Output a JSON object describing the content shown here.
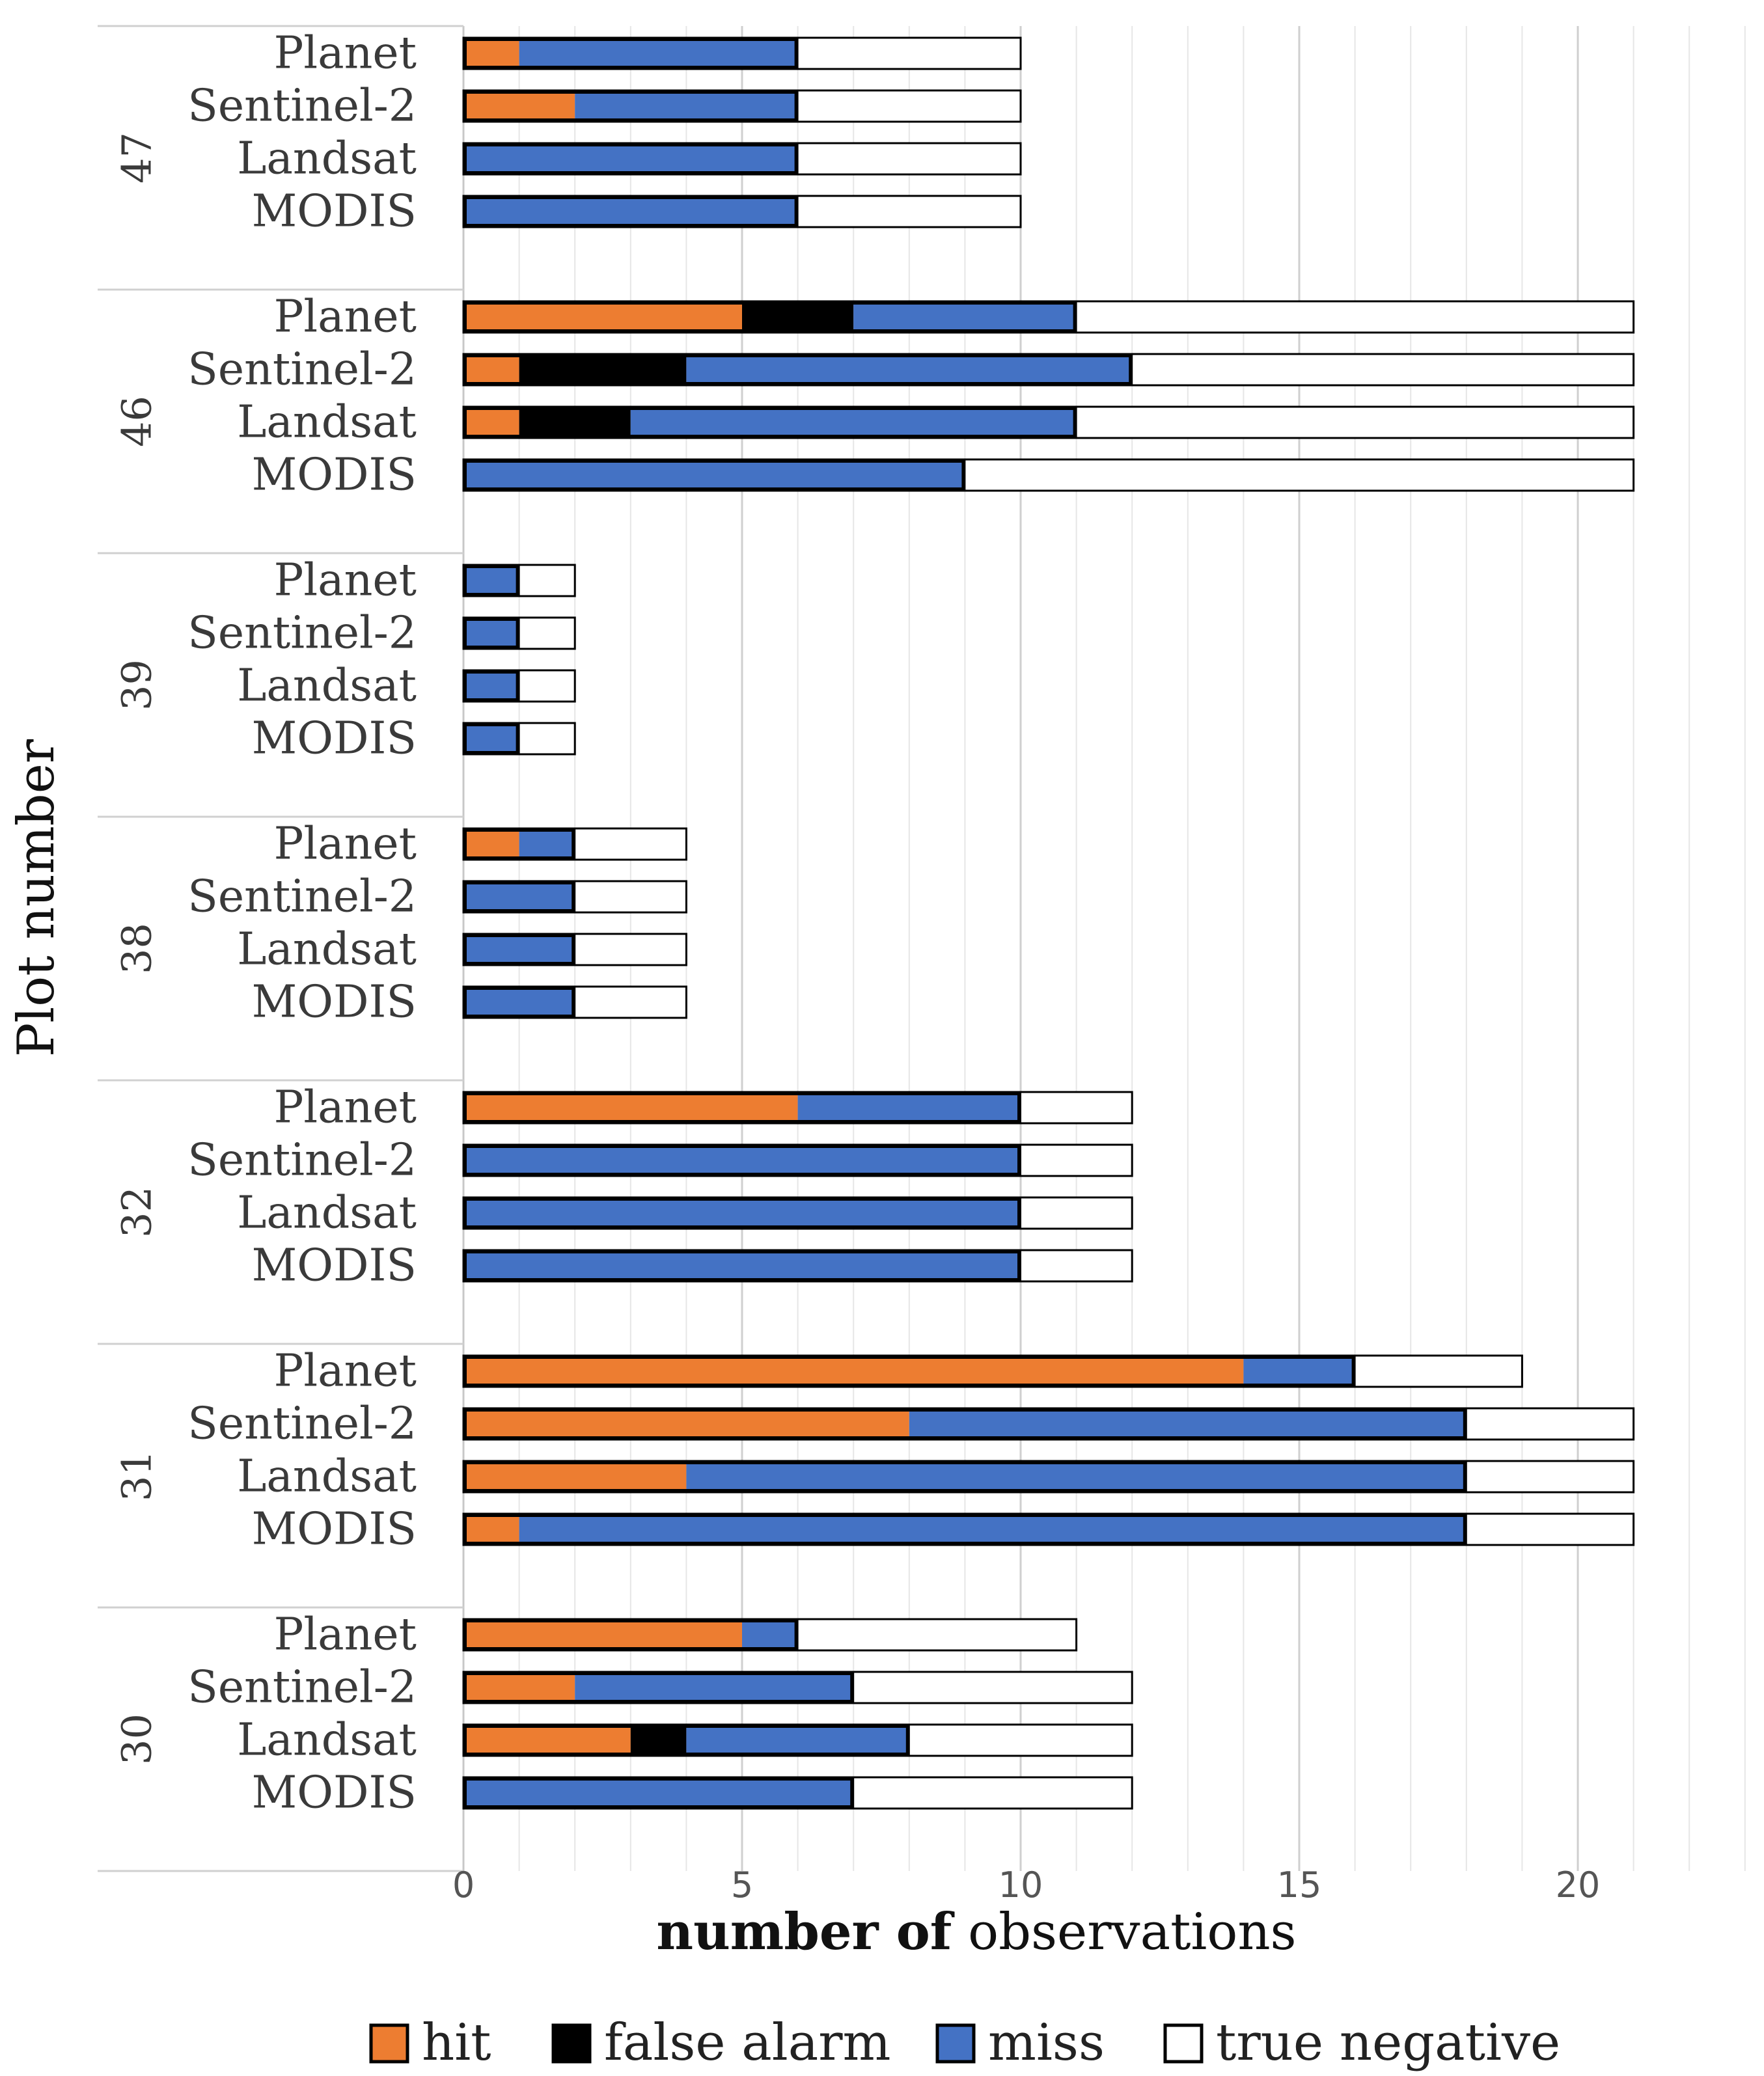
{
  "chart_data": {
    "type": "bar",
    "orientation": "horizontal",
    "stacked": true,
    "ylabel": "Plot number",
    "xlabel_bold": "number of",
    "xlabel_rest": " observations",
    "xlim": [
      0,
      23
    ],
    "xticks": [
      0,
      5,
      10,
      15,
      20
    ],
    "grid": "vertical, every 1 unit",
    "legend_position": "bottom",
    "series": [
      {
        "name": "hit",
        "color": "#ED7D31"
      },
      {
        "name": "false alarm",
        "color": "#000000"
      },
      {
        "name": "miss",
        "color": "#4472C4"
      },
      {
        "name": "true negative",
        "color": "#FFFFFF"
      }
    ],
    "groups": [
      {
        "plot": "47",
        "bars": [
          {
            "sensor": "Planet",
            "values": [
              1,
              0,
              5,
              4
            ]
          },
          {
            "sensor": "Sentinel-2",
            "values": [
              2,
              0,
              4,
              4
            ]
          },
          {
            "sensor": "Landsat",
            "values": [
              0,
              0,
              6,
              4
            ]
          },
          {
            "sensor": "MODIS",
            "values": [
              0,
              0,
              6,
              4
            ]
          }
        ]
      },
      {
        "plot": "46",
        "bars": [
          {
            "sensor": "Planet",
            "values": [
              5,
              2,
              4,
              10
            ]
          },
          {
            "sensor": "Sentinel-2",
            "values": [
              1,
              3,
              8,
              9
            ]
          },
          {
            "sensor": "Landsat",
            "values": [
              1,
              2,
              8,
              10
            ]
          },
          {
            "sensor": "MODIS",
            "values": [
              0,
              0,
              9,
              12
            ]
          }
        ]
      },
      {
        "plot": "39",
        "bars": [
          {
            "sensor": "Planet",
            "values": [
              0,
              0,
              1,
              1
            ]
          },
          {
            "sensor": "Sentinel-2",
            "values": [
              0,
              0,
              1,
              1
            ]
          },
          {
            "sensor": "Landsat",
            "values": [
              0,
              0,
              1,
              1
            ]
          },
          {
            "sensor": "MODIS",
            "values": [
              0,
              0,
              1,
              1
            ]
          }
        ]
      },
      {
        "plot": "38",
        "bars": [
          {
            "sensor": "Planet",
            "values": [
              1,
              0,
              1,
              2
            ]
          },
          {
            "sensor": "Sentinel-2",
            "values": [
              0,
              0,
              2,
              2
            ]
          },
          {
            "sensor": "Landsat",
            "values": [
              0,
              0,
              2,
              2
            ]
          },
          {
            "sensor": "MODIS",
            "values": [
              0,
              0,
              2,
              2
            ]
          }
        ]
      },
      {
        "plot": "32",
        "bars": [
          {
            "sensor": "Planet",
            "values": [
              6,
              0,
              4,
              2
            ]
          },
          {
            "sensor": "Sentinel-2",
            "values": [
              0,
              0,
              10,
              2
            ]
          },
          {
            "sensor": "Landsat",
            "values": [
              0,
              0,
              10,
              2
            ]
          },
          {
            "sensor": "MODIS",
            "values": [
              0,
              0,
              10,
              2
            ]
          }
        ]
      },
      {
        "plot": "31",
        "bars": [
          {
            "sensor": "Planet",
            "values": [
              14,
              0,
              2,
              3
            ]
          },
          {
            "sensor": "Sentinel-2",
            "values": [
              8,
              0,
              10,
              3
            ]
          },
          {
            "sensor": "Landsat",
            "values": [
              4,
              0,
              14,
              3
            ]
          },
          {
            "sensor": "MODIS",
            "values": [
              1,
              0,
              17,
              3
            ]
          }
        ]
      },
      {
        "plot": "30",
        "bars": [
          {
            "sensor": "Planet",
            "values": [
              5,
              0,
              1,
              5
            ]
          },
          {
            "sensor": "Sentinel-2",
            "values": [
              2,
              0,
              5,
              5
            ]
          },
          {
            "sensor": "Landsat",
            "values": [
              3,
              1,
              4,
              4
            ]
          },
          {
            "sensor": "MODIS",
            "values": [
              0,
              0,
              7,
              5
            ]
          }
        ]
      }
    ]
  }
}
